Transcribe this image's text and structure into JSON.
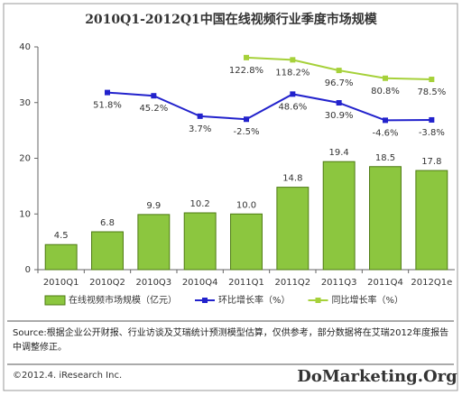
{
  "chart_data": {
    "type": "bar",
    "title": "2010Q1-2012Q1中国在线视频行业季度市场规模",
    "categories": [
      "2010Q1",
      "2010Q2",
      "2010Q3",
      "2010Q4",
      "2011Q1",
      "2011Q2",
      "2011Q3",
      "2011Q4",
      "2012Q1e"
    ],
    "series": [
      {
        "name": "在线视频市场规模（亿元）",
        "type": "bar",
        "color": "#8cc63f",
        "values": [
          4.5,
          6.8,
          9.9,
          10.2,
          10.0,
          14.8,
          19.4,
          18.5,
          17.8
        ],
        "value_labels": [
          "4.5",
          "6.8",
          "9.9",
          "10.2",
          "10.0",
          "14.8",
          "19.4",
          "18.5",
          "17.8"
        ]
      },
      {
        "name": "环比增长率（%）",
        "type": "line",
        "axis": "y2",
        "color": "#2222cc",
        "values": [
          null,
          51.8,
          45.2,
          3.7,
          -2.5,
          48.6,
          30.9,
          -4.6,
          -3.8
        ],
        "value_labels": [
          null,
          "51.8%",
          "45.2%",
          "3.7%",
          "-2.5%",
          "48.6%",
          "30.9%",
          "-4.6%",
          "-3.8%"
        ]
      },
      {
        "name": "同比增长率（%）",
        "type": "line",
        "axis": "y2",
        "color": "#a6d13a",
        "values": [
          null,
          null,
          null,
          null,
          122.8,
          118.2,
          96.7,
          80.8,
          78.5
        ],
        "value_labels": [
          null,
          null,
          null,
          null,
          "122.8%",
          "118.2%",
          "96.7%",
          "80.8%",
          "78.5%"
        ]
      }
    ],
    "ylim": [
      0,
      40
    ],
    "yticks": [
      0,
      10,
      20,
      30,
      40
    ],
    "y2lim": [
      -308,
      144.5
    ],
    "grid": false,
    "source": "Source:根据企业公开财报、行业访谈及艾瑞统计预测模型估算，仅供参考，部分数据将在艾瑞2012年度报告中调整修正。",
    "copyright": "©2012.4. iResearch Inc.",
    "watermark": "DoMarketing.Org"
  }
}
